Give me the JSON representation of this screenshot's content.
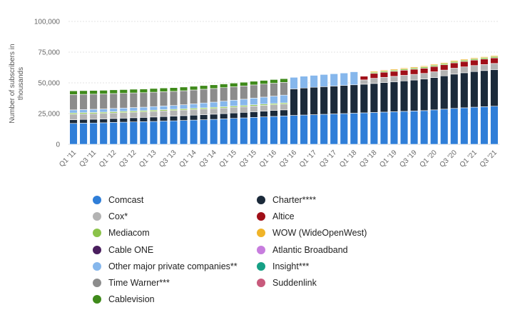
{
  "chart_data": {
    "type": "bar",
    "stacked": true,
    "ylabel": "Number of subscribers in thousands",
    "ylim": [
      0,
      100000
    ],
    "yticks": [
      0,
      25000,
      50000,
      75000,
      100000
    ],
    "ytick_labels": [
      "0",
      "25,000",
      "50,000",
      "75,000",
      "100,000"
    ],
    "grid": true,
    "legend_position": "bottom",
    "categories": [
      "Q1 '11",
      "Q2 '11",
      "Q3 '11",
      "Q4 '11",
      "Q1 '12",
      "Q2 '12",
      "Q3 '12",
      "Q4 '12",
      "Q1 '13",
      "Q2 '13",
      "Q3 '13",
      "Q4 '13",
      "Q1 '14",
      "Q2 '14",
      "Q3 '14",
      "Q4 '14",
      "Q1 '15",
      "Q2 '15",
      "Q3 '15",
      "Q4 '15",
      "Q1 '16",
      "Q2 '16",
      "Q3 '16",
      "Q4 '16",
      "Q1 '17",
      "Q2 '17",
      "Q3 '17",
      "Q4 '17",
      "Q1 '18",
      "Q2 '18",
      "Q3 '18",
      "Q4 '18",
      "Q1 '19",
      "Q2 '19",
      "Q3 '19",
      "Q4 '19",
      "Q1 '20",
      "Q2 '20",
      "Q3 '20",
      "Q4 '20",
      "Q1 '21",
      "Q2 '21",
      "Q3 '21"
    ],
    "xtick_labels": [
      "Q1 '11",
      "Q3 '11",
      "Q1 '12",
      "Q3 '12",
      "Q1 '13",
      "Q3 '13",
      "Q1 '14",
      "Q3 '14",
      "Q1 '15",
      "Q3 '15",
      "Q1 '16",
      "Q3 '16",
      "Q1 '17",
      "Q3 '17",
      "Q1 '18",
      "Q3 '18",
      "Q1 '19",
      "Q3 '19",
      "Q1 '20",
      "Q3 '20",
      "Q1 '21",
      "Q3 '21"
    ],
    "series": [
      {
        "name": "Comcast",
        "color": "#2f7ed8",
        "values": [
          17000,
          17200,
          17300,
          17500,
          17800,
          18000,
          18200,
          18400,
          18600,
          18900,
          19100,
          19400,
          19700,
          20000,
          20300,
          20700,
          21100,
          21500,
          21900,
          22300,
          22700,
          23100,
          23500,
          23800,
          24100,
          24400,
          24700,
          25000,
          25300,
          25600,
          25900,
          26200,
          26500,
          26800,
          27100,
          27400,
          28000,
          28600,
          29200,
          29700,
          30200,
          30600,
          31000
        ]
      },
      {
        "name": "Charter****",
        "color": "#1b2a3a",
        "values": [
          3000,
          3050,
          3100,
          3150,
          3200,
          3300,
          3400,
          3500,
          3600,
          3700,
          3800,
          3900,
          4000,
          4100,
          4200,
          4300,
          4400,
          4500,
          4600,
          4700,
          4800,
          4900,
          21600,
          22000,
          22300,
          22500,
          22700,
          22900,
          23100,
          23300,
          23600,
          24000,
          24400,
          24800,
          25200,
          25700,
          26300,
          27100,
          27900,
          28500,
          29000,
          29400,
          29800
        ]
      },
      {
        "name": "Cox*",
        "color": "#b3b3b3",
        "values": [
          4500,
          4500,
          4500,
          4500,
          4500,
          4500,
          4500,
          4500,
          4600,
          4600,
          4600,
          4600,
          4600,
          4600,
          4600,
          4600,
          4600,
          4600,
          4700,
          4700,
          4700,
          4700,
          0,
          0,
          0,
          0,
          0,
          0,
          0,
          3500,
          4200,
          4300,
          4400,
          4500,
          4600,
          4600,
          4700,
          4700,
          4800,
          4800,
          4900,
          4900,
          5000
        ]
      },
      {
        "name": "Altice",
        "color": "#a00f18",
        "values": [
          0,
          0,
          0,
          0,
          0,
          0,
          0,
          0,
          0,
          0,
          0,
          0,
          0,
          0,
          0,
          0,
          0,
          0,
          0,
          0,
          0,
          0,
          0,
          0,
          0,
          0,
          0,
          0,
          0,
          3000,
          4000,
          4100,
          4100,
          4200,
          4200,
          4200,
          4300,
          4300,
          4400,
          4400,
          4400,
          4500,
          4500
        ]
      },
      {
        "name": "Mediacom",
        "color": "#8bc34a",
        "values": [
          1000,
          1000,
          1000,
          1000,
          1000,
          1000,
          1000,
          1000,
          1000,
          1000,
          1000,
          1000,
          1000,
          1000,
          1000,
          1000,
          1000,
          1000,
          1000,
          1000,
          1000,
          1000,
          0,
          0,
          0,
          0,
          0,
          0,
          0,
          0,
          1000,
          1000,
          1000,
          1000,
          1100,
          1100,
          1100,
          1100,
          1100,
          1100,
          1100,
          1100,
          1100
        ]
      },
      {
        "name": "WOW (WideOpenWest)",
        "color": "#f0b429",
        "values": [
          0,
          0,
          0,
          0,
          0,
          0,
          0,
          0,
          0,
          0,
          0,
          0,
          0,
          0,
          0,
          0,
          0,
          0,
          0,
          0,
          0,
          0,
          0,
          0,
          0,
          0,
          0,
          0,
          0,
          0,
          800,
          800,
          800,
          800,
          800,
          800,
          800,
          800,
          800,
          800,
          800,
          800,
          800
        ]
      },
      {
        "name": "Cable ONE",
        "color": "#4a1f5e",
        "values": [
          0,
          0,
          0,
          0,
          0,
          0,
          0,
          0,
          0,
          0,
          0,
          0,
          0,
          0,
          0,
          0,
          0,
          0,
          0,
          0,
          0,
          0,
          0,
          0,
          0,
          0,
          0,
          0,
          0,
          0,
          300,
          300,
          300,
          300,
          300,
          300,
          300,
          300,
          300,
          300,
          300,
          300,
          300
        ]
      },
      {
        "name": "Atlantic Broadband",
        "color": "#c77dde",
        "values": [
          0,
          0,
          0,
          0,
          0,
          0,
          0,
          0,
          0,
          0,
          0,
          0,
          0,
          0,
          0,
          0,
          0,
          0,
          0,
          0,
          0,
          0,
          0,
          0,
          0,
          0,
          0,
          0,
          0,
          0,
          300,
          300,
          300,
          300,
          300,
          300,
          300,
          300,
          300,
          300,
          300,
          300,
          300
        ]
      },
      {
        "name": "Other major private companies**",
        "color": "#86b7ec",
        "values": [
          2500,
          2500,
          2600,
          2600,
          2700,
          2700,
          2800,
          2800,
          2900,
          3000,
          3100,
          3300,
          3600,
          3900,
          4200,
          4500,
          4800,
          5100,
          5400,
          5700,
          6000,
          6300,
          9400,
          9600,
          9700,
          9900,
          10000,
          10100,
          10600,
          0,
          0,
          0,
          0,
          0,
          0,
          0,
          0,
          0,
          0,
          0,
          0,
          0,
          0
        ]
      },
      {
        "name": "Insight***",
        "color": "#16a085",
        "values": [
          0,
          0,
          0,
          0,
          0,
          0,
          0,
          0,
          0,
          0,
          0,
          0,
          0,
          0,
          0,
          0,
          0,
          0,
          0,
          0,
          0,
          0,
          0,
          0,
          0,
          0,
          0,
          0,
          0,
          0,
          0,
          0,
          0,
          0,
          0,
          0,
          0,
          0,
          0,
          0,
          0,
          0,
          0
        ]
      },
      {
        "name": "Time Warner***",
        "color": "#8c8c8c",
        "values": [
          12500,
          12400,
          12300,
          12200,
          12100,
          12000,
          11900,
          11800,
          11700,
          11600,
          11500,
          11400,
          11300,
          11200,
          11100,
          11000,
          10900,
          10800,
          10700,
          10600,
          10500,
          10400,
          0,
          0,
          0,
          0,
          0,
          0,
          0,
          0,
          0,
          0,
          0,
          0,
          0,
          0,
          0,
          0,
          0,
          0,
          0,
          0,
          0
        ]
      },
      {
        "name": "Suddenlink",
        "color": "#c85a7c",
        "values": [
          0,
          0,
          0,
          0,
          0,
          0,
          0,
          0,
          0,
          0,
          0,
          0,
          0,
          0,
          0,
          0,
          0,
          0,
          0,
          0,
          0,
          0,
          0,
          0,
          0,
          0,
          0,
          0,
          0,
          0,
          0,
          0,
          0,
          0,
          0,
          0,
          0,
          0,
          0,
          0,
          0,
          0,
          0
        ]
      },
      {
        "name": "Cablevision",
        "color": "#3f8a1b",
        "values": [
          3000,
          3000,
          3000,
          3000,
          3000,
          3000,
          3000,
          3000,
          3000,
          3000,
          3000,
          3000,
          3000,
          3000,
          3000,
          3000,
          3000,
          3000,
          3000,
          3000,
          3000,
          3000,
          0,
          0,
          0,
          0,
          0,
          0,
          0,
          0,
          0,
          0,
          0,
          0,
          0,
          0,
          0,
          0,
          0,
          0,
          0,
          0,
          0
        ]
      }
    ],
    "legend_order": [
      "Comcast",
      "Charter****",
      "Cox*",
      "Altice",
      "Mediacom",
      "WOW (WideOpenWest)",
      "Cable ONE",
      "Atlantic Broadband",
      "Other major private companies**",
      "Insight***",
      "Time Warner***",
      "Suddenlink",
      "Cablevision"
    ]
  }
}
